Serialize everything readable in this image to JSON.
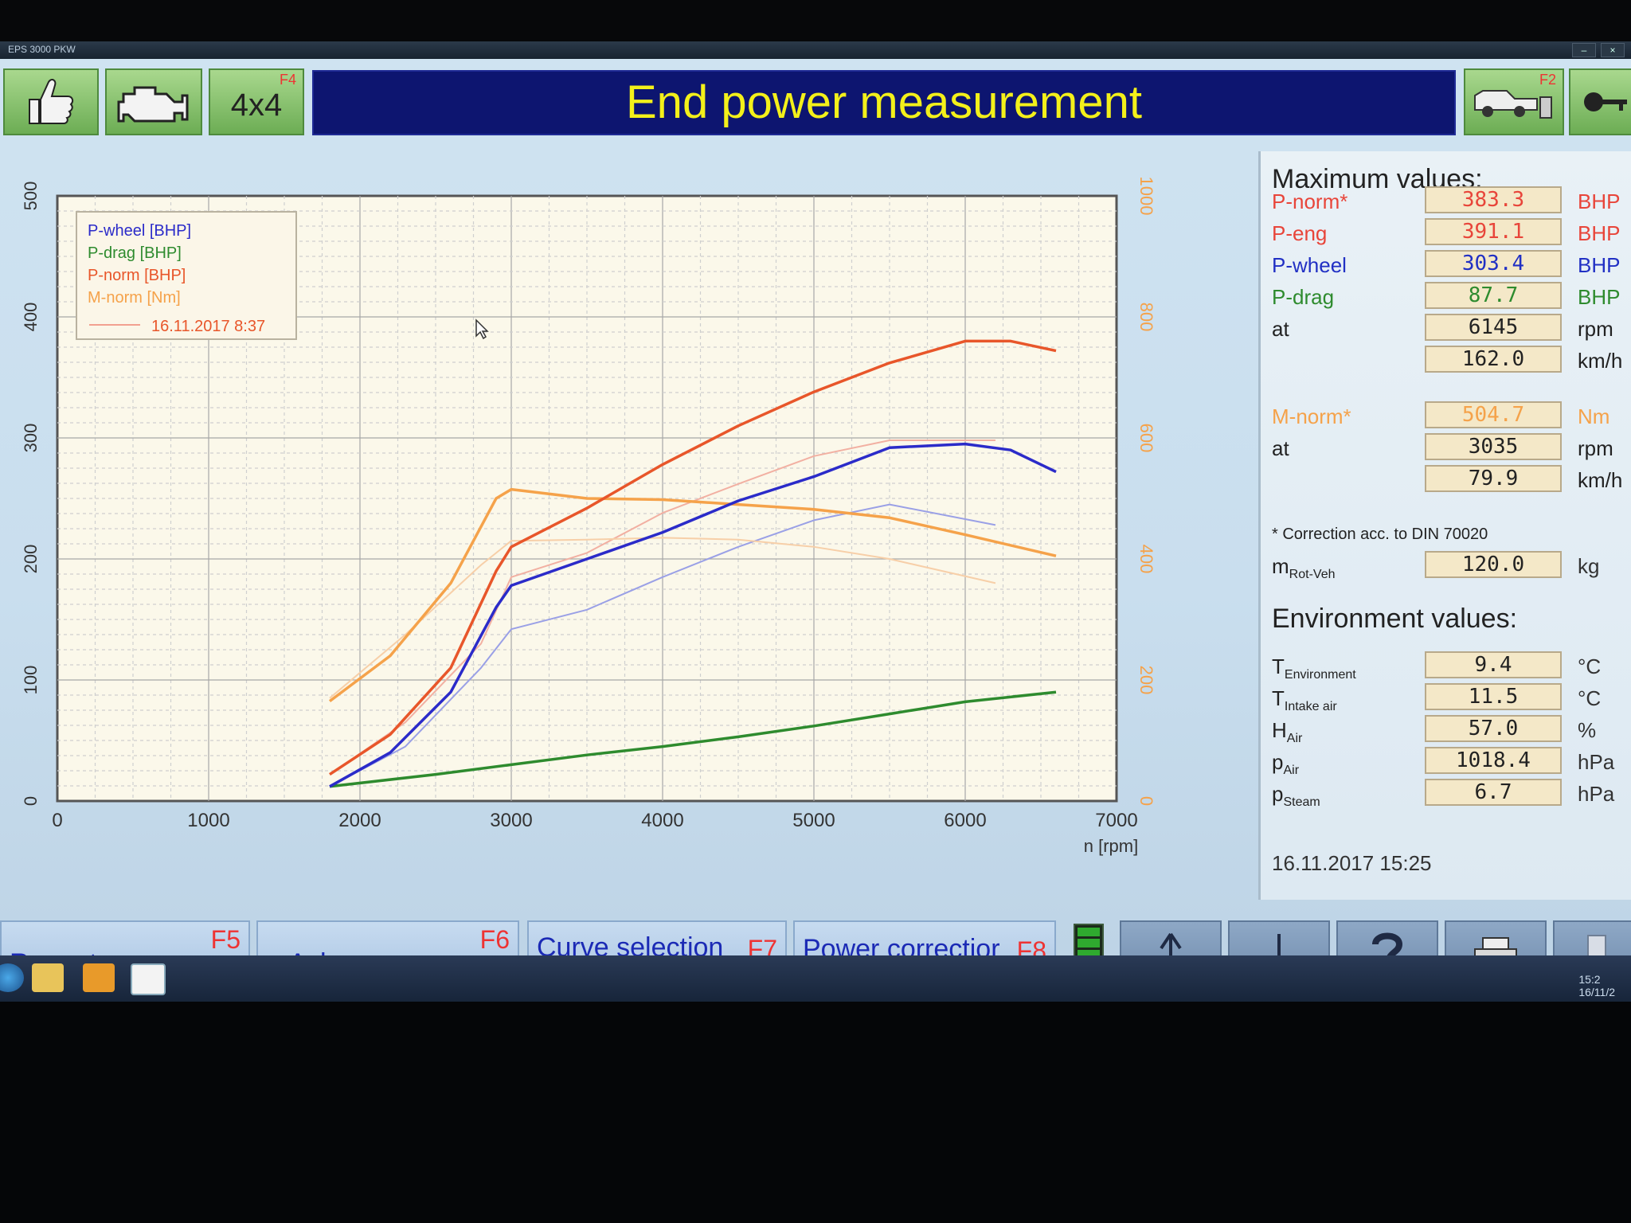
{
  "window": {
    "tab_title": "EPS 3000 PKW"
  },
  "topbar": {
    "ok_fkey": "",
    "engine_fkey": "",
    "four_wd_label": "4x4",
    "four_wd_fkey": "F4",
    "title": "End power measurement",
    "vehicle_fkey": "F2"
  },
  "chart_data": {
    "type": "line",
    "title": "",
    "xlabel": "n [rpm]",
    "ylabel_left": "",
    "ylabel_right": "",
    "xlim": [
      0,
      7000
    ],
    "ylim_left": [
      0,
      500
    ],
    "ylim_right": [
      0,
      1000
    ],
    "x_ticks": [
      "0",
      "1000",
      "2000",
      "3000",
      "4000",
      "5000",
      "6000",
      "7000"
    ],
    "y_left_ticks": [
      "0",
      "100",
      "200",
      "300",
      "400",
      "500"
    ],
    "y_right_ticks": [
      "0",
      "200",
      "400",
      "600",
      "800",
      "1000"
    ],
    "grid": true,
    "legend_position": "top-left",
    "legend": [
      {
        "label": "P-wheel [BHP]",
        "color": "#2b2bc9"
      },
      {
        "label": "P-drag [BHP]",
        "color": "#2e8b2e"
      },
      {
        "label": "P-norm [BHP]",
        "color": "#e8562a"
      },
      {
        "label": "M-norm [Nm]",
        "color": "#f5a24a"
      }
    ],
    "legend_reference": "16.11.2017 8:37",
    "series": [
      {
        "name": "P-wheel [BHP]",
        "axis": "left",
        "color": "#2b2bc9",
        "x": [
          1800,
          2200,
          2600,
          2900,
          3000,
          3500,
          4000,
          4500,
          5000,
          5500,
          6000,
          6300,
          6600
        ],
        "y": [
          12,
          40,
          90,
          160,
          178,
          200,
          222,
          248,
          268,
          292,
          295,
          290,
          272
        ]
      },
      {
        "name": "P-drag [BHP]",
        "axis": "left",
        "color": "#2e8b2e",
        "x": [
          1800,
          2500,
          3000,
          3500,
          4000,
          4500,
          5000,
          5500,
          6000,
          6600
        ],
        "y": [
          12,
          22,
          30,
          38,
          45,
          53,
          62,
          72,
          82,
          90
        ]
      },
      {
        "name": "P-norm [BHP]",
        "axis": "left",
        "color": "#e8562a",
        "x": [
          1800,
          2200,
          2600,
          2900,
          3000,
          3500,
          4000,
          4500,
          5000,
          5500,
          6000,
          6300,
          6600
        ],
        "y": [
          22,
          55,
          110,
          190,
          210,
          242,
          278,
          310,
          338,
          362,
          380,
          380,
          372
        ]
      },
      {
        "name": "M-norm [Nm]",
        "axis": "right",
        "color": "#f5a24a",
        "x": [
          1800,
          2200,
          2600,
          2900,
          3000,
          3100,
          3500,
          4000,
          4500,
          5000,
          5500,
          6000,
          6600
        ],
        "y": [
          165,
          240,
          360,
          500,
          515,
          512,
          500,
          498,
          490,
          482,
          468,
          440,
          405
        ]
      },
      {
        "name": "P-wheel (reference)",
        "axis": "left",
        "color": "#9aa0e6",
        "x": [
          1800,
          2300,
          2800,
          3000,
          3500,
          4000,
          4500,
          5000,
          5500,
          6200
        ],
        "y": [
          12,
          45,
          110,
          142,
          158,
          185,
          210,
          232,
          245,
          228
        ]
      },
      {
        "name": "P-norm (reference)",
        "axis": "left",
        "color": "#f2b0a2",
        "x": [
          1800,
          2300,
          2800,
          3000,
          3500,
          4000,
          4500,
          5000,
          5500,
          6200
        ],
        "y": [
          22,
          65,
          130,
          185,
          205,
          238,
          262,
          285,
          298,
          298
        ]
      },
      {
        "name": "M-norm (reference)",
        "axis": "right",
        "color": "#f7cfa8",
        "x": [
          1800,
          2300,
          2800,
          3000,
          3500,
          4000,
          4500,
          5000,
          5500,
          6200
        ],
        "y": [
          170,
          275,
          390,
          430,
          432,
          435,
          432,
          420,
          400,
          360
        ]
      }
    ]
  },
  "max_values": {
    "heading": "Maximum values:",
    "rows": [
      {
        "label": "P-norm*",
        "value": "383.3",
        "unit": "BHP",
        "label_color": "#e8453a",
        "value_color": "#e8453a",
        "unit_color": "#e8453a"
      },
      {
        "label": "P-eng",
        "value": "391.1",
        "unit": "BHP",
        "label_color": "#e8453a",
        "value_color": "#e8453a",
        "unit_color": "#e8453a"
      },
      {
        "label": "P-wheel",
        "value": "303.4",
        "unit": "BHP",
        "label_color": "#2130c4",
        "value_color": "#2130c4",
        "unit_color": "#2130c4"
      },
      {
        "label": "P-drag",
        "value": "87.7",
        "unit": "BHP",
        "label_color": "#2e8b2e",
        "value_color": "#2e8b2e",
        "unit_color": "#2e8b2e"
      },
      {
        "label": "at",
        "value": "6145",
        "unit": "rpm",
        "label_color": "#222222",
        "value_color": "#222222",
        "unit_color": "#222222"
      },
      {
        "label": "",
        "value": "162.0",
        "unit": "km/h",
        "label_color": "#222222",
        "value_color": "#222222",
        "unit_color": "#222222"
      },
      {
        "label": "M-norm*",
        "value": "504.7",
        "unit": "Nm",
        "label_color": "#f5a24a",
        "value_color": "#f5a24a",
        "unit_color": "#f5a24a"
      },
      {
        "label": "at",
        "value": "3035",
        "unit": "rpm",
        "label_color": "#222222",
        "value_color": "#222222",
        "unit_color": "#222222"
      },
      {
        "label": "",
        "value": "79.9",
        "unit": "km/h",
        "label_color": "#222222",
        "value_color": "#222222",
        "unit_color": "#222222"
      }
    ],
    "correction_note": "* Correction acc. to DIN 70020",
    "mass": {
      "label": "m",
      "label_sub": "Rot-Veh",
      "value": "120.0",
      "unit": "kg"
    }
  },
  "environment": {
    "heading": "Environment values:",
    "rows": [
      {
        "label": "T",
        "label_sub": "Environment",
        "value": "9.4",
        "unit": "°C"
      },
      {
        "label": "T",
        "label_sub": "Intake air",
        "value": "11.5",
        "unit": "°C"
      },
      {
        "label": "H",
        "label_sub": "Air",
        "value": "57.0",
        "unit": "%"
      },
      {
        "label": "p",
        "label_sub": "Air",
        "value": "1018.4",
        "unit": "hPa"
      },
      {
        "label": "p",
        "label_sub": "Steam",
        "value": "6.7",
        "unit": "hPa"
      }
    ]
  },
  "datetime": "16.11.2017  15:25",
  "bottombar": {
    "repeat_label": "Repeat",
    "repeat_key": "F5",
    "xaxle_label": "x-Axle = v",
    "xaxle_key": "F6",
    "curve_label": "Curve selection",
    "curve_key": "F7",
    "power_label": "Power correctior",
    "power_key": "F8",
    "icons": [
      "up-arrow-icon",
      "down-arrow-icon",
      "help-icon",
      "printer-icon"
    ]
  },
  "taskbar": {
    "icons": [
      "start-icon",
      "folder-icon",
      "media-player-icon",
      "app-chart-icon"
    ],
    "clock_time": "15:2",
    "clock_date": "16/11/2"
  }
}
